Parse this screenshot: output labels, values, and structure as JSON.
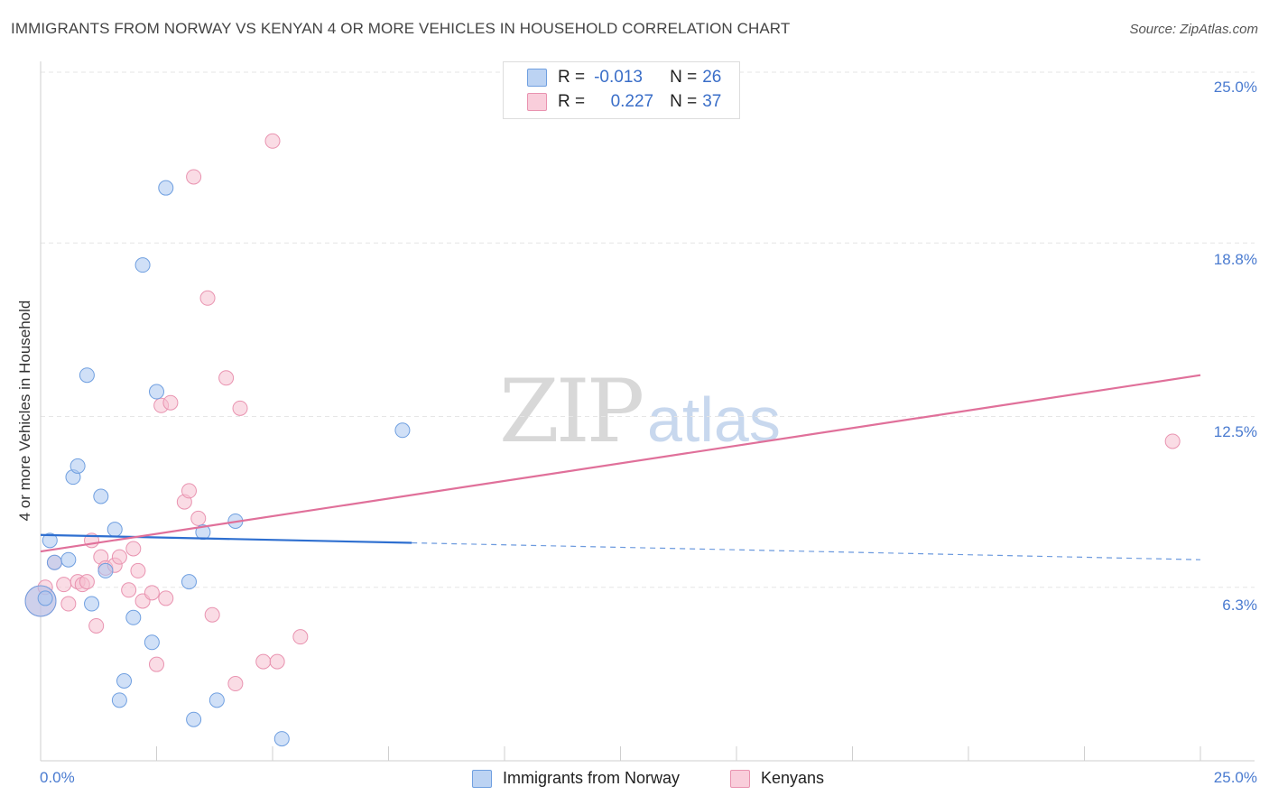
{
  "title": "IMMIGRANTS FROM NORWAY VS KENYAN 4 OR MORE VEHICLES IN HOUSEHOLD CORRELATION CHART",
  "source": "Source: ZipAtlas.com",
  "watermark": {
    "zip": "ZIP",
    "atlas": "atlas"
  },
  "colors": {
    "norway_fill": "#a9c6f0",
    "norway_stroke": "#6f9fe0",
    "norway_line": "#2e6fd0",
    "kenya_fill": "#f6bfd0",
    "kenya_stroke": "#e993b0",
    "kenya_line": "#e0709a",
    "axis_text": "#4a7bd0",
    "grid": "#e6e6e6"
  },
  "legend": {
    "rows": [
      {
        "r_label": "R =",
        "r_value": "-0.013",
        "n_label": "N =",
        "n_value": "26"
      },
      {
        "r_label": "R =",
        "r_value": "0.227",
        "n_label": "N =",
        "n_value": "37"
      }
    ]
  },
  "bottom_legend": {
    "norway": "Immigrants from Norway",
    "kenya": "Kenyans"
  },
  "chart_data": {
    "type": "scatter",
    "title": "IMMIGRANTS FROM NORWAY VS KENYAN 4 OR MORE VEHICLES IN HOUSEHOLD CORRELATION CHART",
    "xlabel": "",
    "ylabel": "4 or more Vehicles in Household",
    "xlim": [
      0,
      25
    ],
    "ylim": [
      0,
      25
    ],
    "x_tick_labels": [
      "0.0%",
      "25.0%"
    ],
    "y_ticks": [
      6.3,
      12.5,
      18.8,
      25.0
    ],
    "y_tick_labels": [
      "6.3%",
      "12.5%",
      "18.8%",
      "25.0%"
    ],
    "grid": true,
    "legend_position": "top-center",
    "series": [
      {
        "name": "Immigrants from Norway",
        "R": -0.013,
        "N": 26,
        "trend": {
          "x0": 0,
          "y0": 8.2,
          "x_solid_end": 8.0,
          "x1": 25,
          "y1": 7.3
        },
        "points": [
          {
            "x": 0.2,
            "y": 8.0,
            "s": 1
          },
          {
            "x": 0.3,
            "y": 7.2,
            "s": 1
          },
          {
            "x": 0.6,
            "y": 7.3,
            "s": 1
          },
          {
            "x": 0.0,
            "y": 5.8,
            "s": 2
          },
          {
            "x": 0.7,
            "y": 10.3,
            "s": 1
          },
          {
            "x": 0.8,
            "y": 10.7,
            "s": 1
          },
          {
            "x": 1.0,
            "y": 14.0,
            "s": 1
          },
          {
            "x": 1.1,
            "y": 5.7,
            "s": 1
          },
          {
            "x": 1.3,
            "y": 9.6,
            "s": 1
          },
          {
            "x": 1.4,
            "y": 6.9,
            "s": 1
          },
          {
            "x": 1.6,
            "y": 8.4,
            "s": 1
          },
          {
            "x": 1.7,
            "y": 2.2,
            "s": 1
          },
          {
            "x": 1.8,
            "y": 2.9,
            "s": 1
          },
          {
            "x": 2.0,
            "y": 5.2,
            "s": 1
          },
          {
            "x": 2.2,
            "y": 18.0,
            "s": 1
          },
          {
            "x": 2.4,
            "y": 4.3,
            "s": 1
          },
          {
            "x": 2.5,
            "y": 13.4,
            "s": 1
          },
          {
            "x": 2.7,
            "y": 20.8,
            "s": 1
          },
          {
            "x": 3.2,
            "y": 6.5,
            "s": 1
          },
          {
            "x": 3.3,
            "y": 1.5,
            "s": 1
          },
          {
            "x": 3.5,
            "y": 8.3,
            "s": 1
          },
          {
            "x": 3.8,
            "y": 2.2,
            "s": 1
          },
          {
            "x": 4.2,
            "y": 8.7,
            "s": 1
          },
          {
            "x": 5.2,
            "y": 0.8,
            "s": 1
          },
          {
            "x": 7.8,
            "y": 12.0,
            "s": 1
          },
          {
            "x": 0.1,
            "y": 5.9,
            "s": 1
          }
        ]
      },
      {
        "name": "Kenyans",
        "R": 0.227,
        "N": 37,
        "trend": {
          "x0": 0,
          "y0": 7.6,
          "x1": 25,
          "y1": 14.0
        },
        "points": [
          {
            "x": 0.0,
            "y": 5.8,
            "s": 2
          },
          {
            "x": 0.1,
            "y": 6.3,
            "s": 1
          },
          {
            "x": 0.3,
            "y": 7.2,
            "s": 1
          },
          {
            "x": 0.5,
            "y": 6.4,
            "s": 1
          },
          {
            "x": 0.6,
            "y": 5.7,
            "s": 1
          },
          {
            "x": 0.8,
            "y": 6.5,
            "s": 1
          },
          {
            "x": 0.9,
            "y": 6.4,
            "s": 1
          },
          {
            "x": 1.0,
            "y": 6.5,
            "s": 1
          },
          {
            "x": 1.1,
            "y": 8.0,
            "s": 1
          },
          {
            "x": 1.2,
            "y": 4.9,
            "s": 1
          },
          {
            "x": 1.3,
            "y": 7.4,
            "s": 1
          },
          {
            "x": 1.4,
            "y": 7.0,
            "s": 1
          },
          {
            "x": 1.6,
            "y": 7.1,
            "s": 1
          },
          {
            "x": 1.7,
            "y": 7.4,
            "s": 1
          },
          {
            "x": 1.9,
            "y": 6.2,
            "s": 1
          },
          {
            "x": 2.0,
            "y": 7.7,
            "s": 1
          },
          {
            "x": 2.1,
            "y": 6.9,
            "s": 1
          },
          {
            "x": 2.2,
            "y": 5.8,
            "s": 1
          },
          {
            "x": 2.4,
            "y": 6.1,
            "s": 1
          },
          {
            "x": 2.5,
            "y": 3.5,
            "s": 1
          },
          {
            "x": 2.6,
            "y": 12.9,
            "s": 1
          },
          {
            "x": 2.7,
            "y": 5.9,
            "s": 1
          },
          {
            "x": 2.8,
            "y": 13.0,
            "s": 1
          },
          {
            "x": 3.1,
            "y": 9.4,
            "s": 1
          },
          {
            "x": 3.2,
            "y": 9.8,
            "s": 1
          },
          {
            "x": 3.3,
            "y": 21.2,
            "s": 1
          },
          {
            "x": 3.4,
            "y": 8.8,
            "s": 1
          },
          {
            "x": 3.6,
            "y": 16.8,
            "s": 1
          },
          {
            "x": 3.7,
            "y": 5.3,
            "s": 1
          },
          {
            "x": 4.0,
            "y": 13.9,
            "s": 1
          },
          {
            "x": 4.2,
            "y": 2.8,
            "s": 1
          },
          {
            "x": 4.3,
            "y": 12.8,
            "s": 1
          },
          {
            "x": 4.8,
            "y": 3.6,
            "s": 1
          },
          {
            "x": 5.1,
            "y": 3.6,
            "s": 1
          },
          {
            "x": 5.0,
            "y": 22.5,
            "s": 1
          },
          {
            "x": 5.6,
            "y": 4.5,
            "s": 1
          },
          {
            "x": 24.4,
            "y": 11.6,
            "s": 1
          }
        ]
      }
    ]
  }
}
